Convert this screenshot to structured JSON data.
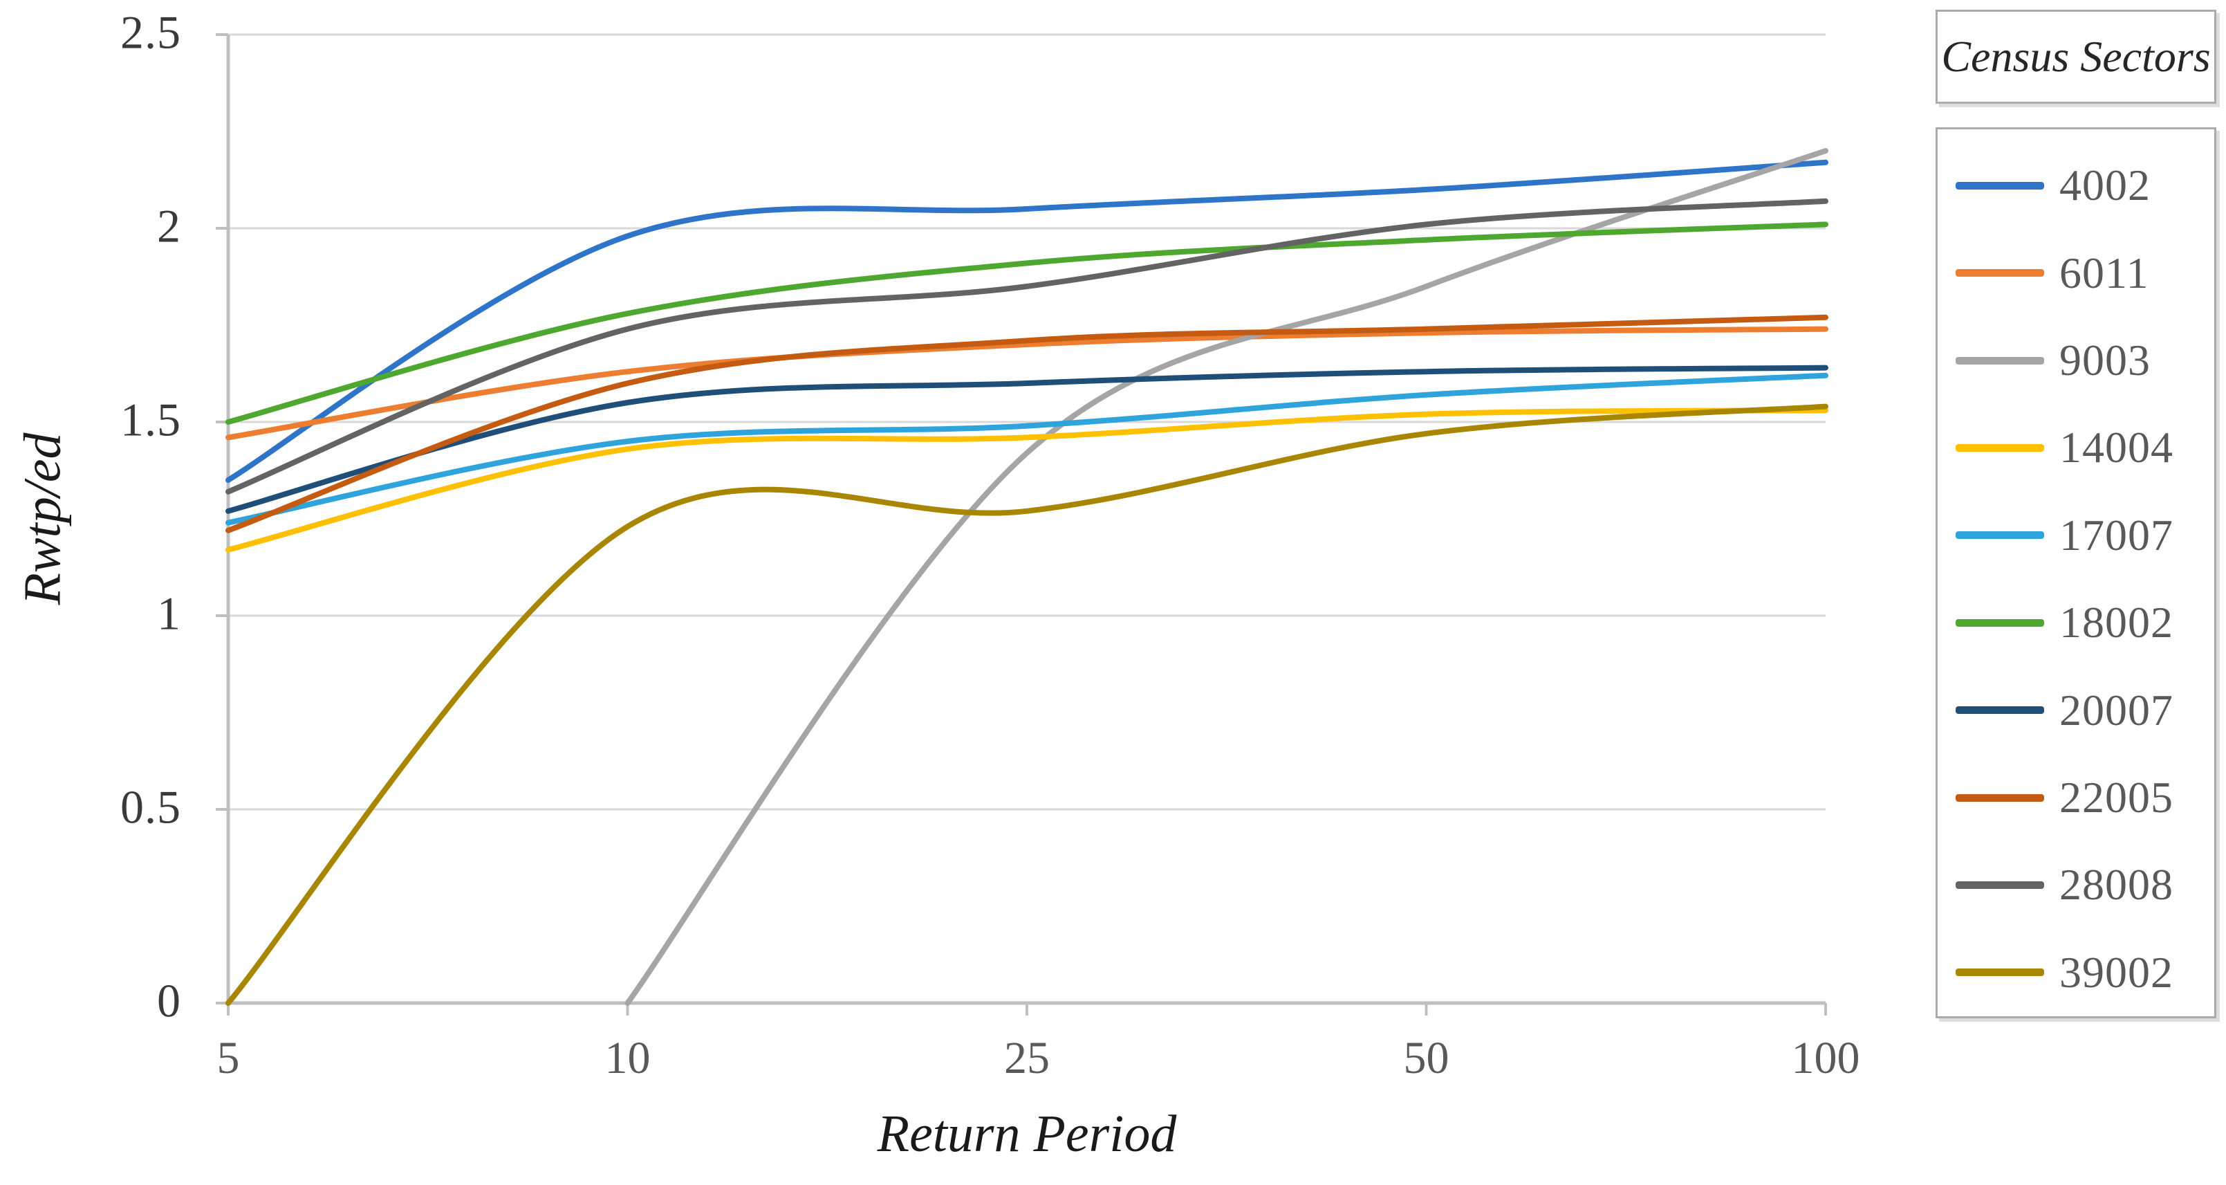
{
  "chart_data": {
    "type": "line",
    "smoothed": true,
    "xlabel": "Return Period",
    "ylabel": "Rwtp/ed",
    "x_categories": [
      "5",
      "10",
      "25",
      "50",
      "100"
    ],
    "y_tick_labels": [
      "0",
      "0.5",
      "1",
      "1.5",
      "2",
      "2.5"
    ],
    "y_tick_values": [
      0,
      0.5,
      1,
      1.5,
      2,
      2.5
    ],
    "ylim": [
      0,
      2.5
    ],
    "grid": "horizontal-only",
    "legend_position": "right",
    "legend_title": "Census Sectors",
    "series": [
      {
        "name": "4002",
        "color": "#2E74C8",
        "values": [
          1.35,
          1.98,
          2.05,
          2.1,
          2.17
        ]
      },
      {
        "name": "6011",
        "color": "#ED7D31",
        "values": [
          1.46,
          1.63,
          1.7,
          1.73,
          1.74
        ]
      },
      {
        "name": "9003",
        "color": "#A5A5A5",
        "values": [
          null,
          0.0,
          1.42,
          1.85,
          2.2
        ]
      },
      {
        "name": "14004",
        "color": "#FFC000",
        "values": [
          1.17,
          1.43,
          1.46,
          1.52,
          1.53
        ]
      },
      {
        "name": "17007",
        "color": "#2FA3DC",
        "values": [
          1.24,
          1.45,
          1.49,
          1.57,
          1.62
        ]
      },
      {
        "name": "18002",
        "color": "#4EA72E",
        "values": [
          1.5,
          1.78,
          1.91,
          1.97,
          2.01
        ]
      },
      {
        "name": "20007",
        "color": "#1F4E79",
        "values": [
          1.27,
          1.55,
          1.6,
          1.63,
          1.64
        ]
      },
      {
        "name": "22005",
        "color": "#C55A11",
        "values": [
          1.22,
          1.6,
          1.71,
          1.74,
          1.77
        ]
      },
      {
        "name": "28008",
        "color": "#636363",
        "values": [
          1.32,
          1.74,
          1.85,
          2.01,
          2.07
        ]
      },
      {
        "name": "39002",
        "color": "#A98600",
        "values": [
          0.0,
          1.23,
          1.27,
          1.47,
          1.54
        ]
      }
    ]
  },
  "axis_colors": {
    "axis_line": "#BFBFBF",
    "gridline": "#D9D9D9"
  }
}
